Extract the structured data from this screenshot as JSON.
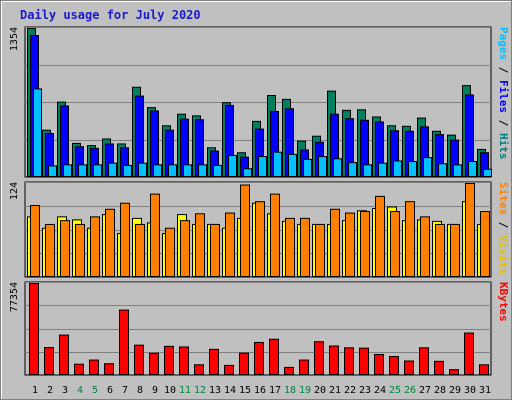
{
  "chart_data": {
    "type": "bar",
    "title": "Daily usage for July 2020",
    "days": [
      "1",
      "2",
      "3",
      "4",
      "5",
      "6",
      "7",
      "8",
      "9",
      "10",
      "11",
      "12",
      "13",
      "14",
      "15",
      "16",
      "17",
      "18",
      "19",
      "20",
      "21",
      "22",
      "23",
      "24",
      "25",
      "26",
      "27",
      "28",
      "29",
      "30",
      "31"
    ],
    "weekend_days": [
      "4",
      "5",
      "11",
      "12",
      "18",
      "19",
      "25",
      "26"
    ],
    "day_colors": {
      "weekday": "#000000",
      "weekend": "#008040"
    },
    "panels": [
      {
        "id": "top",
        "ymax_label": "1354",
        "ymax": 1354,
        "ylabel_parts": [
          {
            "text": "Pages",
            "color": "#00c0ff"
          },
          {
            "text": " / ",
            "color": "#000000"
          },
          {
            "text": "Files",
            "color": "#0000ff"
          },
          {
            "text": " / ",
            "color": "#000000"
          },
          {
            "text": "Hits",
            "color": "#008080"
          }
        ],
        "series": [
          {
            "name": "Hits",
            "color": "#008060",
            "values": [
              1354,
              430,
              685,
              310,
              290,
              350,
              305,
              820,
              635,
              470,
              575,
              560,
              270,
              680,
              225,
              510,
              745,
              710,
              330,
              375,
              785,
              610,
              615,
              550,
              470,
              465,
              540,
              420,
              385,
              835,
              255
            ]
          },
          {
            "name": "Files",
            "color": "#0000ff",
            "values": [
              1290,
              400,
              650,
              280,
              265,
              305,
              270,
              740,
              605,
              430,
              530,
              525,
              240,
              655,
              185,
              440,
              600,
              625,
              250,
              320,
              575,
              535,
              520,
              505,
              425,
              420,
              460,
              390,
              340,
              750,
              225
            ]
          },
          {
            "name": "Pages",
            "color": "#00c0ff",
            "values": [
              805,
              105,
              115,
              115,
              115,
              130,
              110,
              130,
              115,
              115,
              115,
              115,
              110,
              200,
              80,
              190,
              230,
              210,
              165,
              190,
              170,
              135,
              115,
              130,
              150,
              145,
              180,
              125,
              115,
              145,
              75
            ]
          }
        ]
      },
      {
        "id": "mid",
        "ymax_label": "124",
        "ymax": 124,
        "ylabel_parts": [
          {
            "text": "Sites",
            "color": "#ff8000"
          },
          {
            "text": " / ",
            "color": "#000000"
          },
          {
            "text": "Visits",
            "color": "#e0c000"
          }
        ],
        "series": [
          {
            "name": "Visits",
            "color": "#ffff00",
            "values": [
              80,
              65,
              80,
              76,
              65,
              83,
              58,
              78,
              72,
              58,
              83,
              70,
              70,
              65,
              78,
              98,
              84,
              74,
              70,
              70,
              70,
              75,
              88,
              91,
              93,
              75,
              76,
              74,
              70,
              100,
              70
            ]
          },
          {
            "name": "Sites",
            "color": "#ff8000",
            "values": [
              95,
              70,
              75,
              70,
              80,
              90,
              98,
              70,
              110,
              65,
              75,
              84,
              70,
              85,
              122,
              100,
              110,
              78,
              78,
              70,
              90,
              85,
              87,
              107,
              87,
              100,
              80,
              70,
              70,
              124,
              87
            ]
          }
        ]
      },
      {
        "id": "bot",
        "ymax_label": "77354",
        "ymax": 77354,
        "ylabel_parts": [
          {
            "text": "KBytes",
            "color": "#ff0000"
          }
        ],
        "series": [
          {
            "name": "KBytes",
            "color": "#ff0000",
            "values": [
              77354,
              23500,
              34000,
              9500,
              13000,
              9900,
              55000,
              25500,
              18700,
              24500,
              24000,
              9000,
              22000,
              8500,
              18800,
              27800,
              30500,
              6800,
              13000,
              28400,
              24800,
              23300,
              23000,
              17700,
              16000,
              12200,
              23300,
              11900,
              4900,
              35700,
              9000
            ]
          }
        ]
      }
    ]
  },
  "colors": {
    "background": "#c0c0c0",
    "border": "#808080",
    "gridline": "#808080"
  }
}
